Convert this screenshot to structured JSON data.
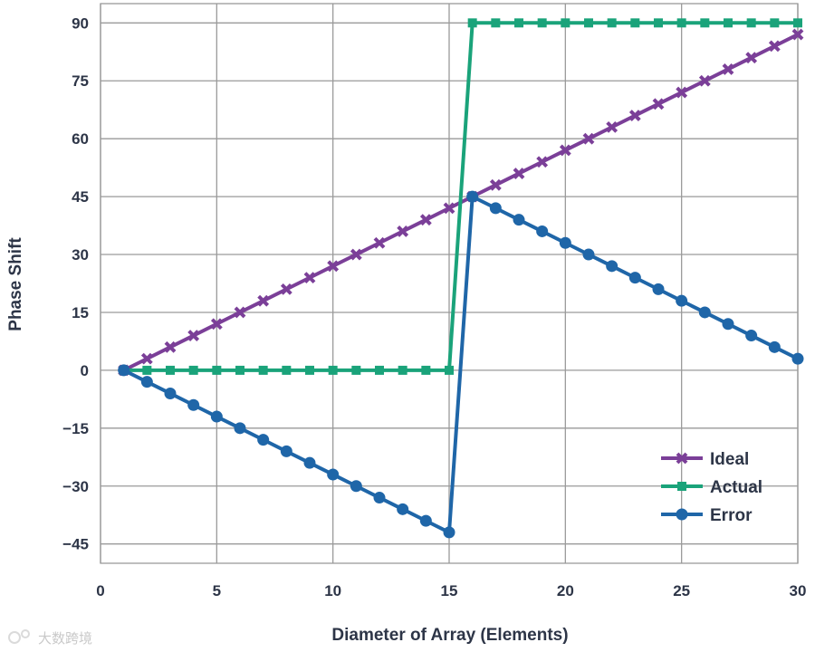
{
  "chart_data": {
    "type": "line",
    "xlabel": "Diameter of Array (Elements)",
    "ylabel": "Phase Shift",
    "xlim": [
      0,
      30
    ],
    "ylim": [
      -50,
      95
    ],
    "xticks": [
      0,
      5,
      10,
      15,
      20,
      25,
      30
    ],
    "yticks": [
      -45,
      -30,
      -15,
      0,
      15,
      30,
      45,
      60,
      75,
      90
    ],
    "ytick_labels": [
      "−45",
      "−30",
      "−15",
      "0",
      "15",
      "30",
      "45",
      "60",
      "75",
      "90"
    ],
    "grid": true,
    "legend": "bottom-right",
    "x": [
      1,
      2,
      3,
      4,
      5,
      6,
      7,
      8,
      9,
      10,
      11,
      12,
      13,
      14,
      15,
      16,
      17,
      18,
      19,
      20,
      21,
      22,
      23,
      24,
      25,
      26,
      27,
      28,
      29,
      30
    ],
    "series": [
      {
        "name": "Ideal",
        "marker": "x",
        "color": "#7b3f98",
        "values": [
          0,
          3,
          6,
          9,
          12,
          15,
          18,
          21,
          24,
          27,
          30,
          33,
          36,
          39,
          42,
          45,
          48,
          51,
          54,
          57,
          60,
          63,
          66,
          69,
          72,
          75,
          78,
          81,
          84,
          87
        ]
      },
      {
        "name": "Actual",
        "marker": "square",
        "color": "#1aa37a",
        "values": [
          0,
          0,
          0,
          0,
          0,
          0,
          0,
          0,
          0,
          0,
          0,
          0,
          0,
          0,
          0,
          90,
          90,
          90,
          90,
          90,
          90,
          90,
          90,
          90,
          90,
          90,
          90,
          90,
          90,
          90
        ]
      },
      {
        "name": "Error",
        "marker": "circle",
        "color": "#1f66a8",
        "values": [
          0,
          -3,
          -6,
          -9,
          -12,
          -15,
          -18,
          -21,
          -24,
          -27,
          -30,
          -33,
          -36,
          -39,
          -42,
          45,
          42,
          39,
          36,
          33,
          30,
          27,
          24,
          21,
          18,
          15,
          12,
          9,
          6,
          3
        ]
      }
    ]
  },
  "watermark": {
    "text": "大数跨境"
  }
}
